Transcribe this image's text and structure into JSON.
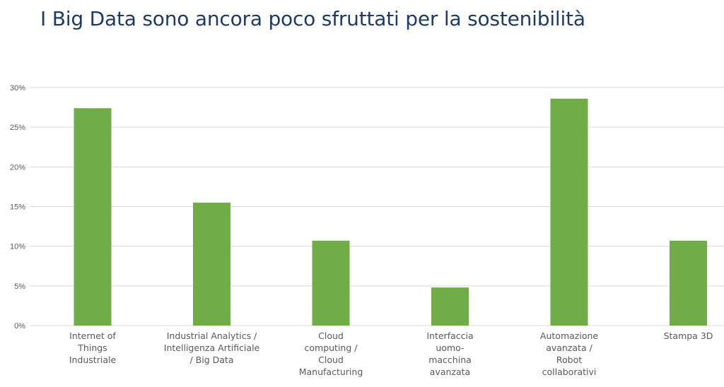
{
  "slide": {
    "title": "I Big Data sono ancora poco sfruttati per la sostenibilità"
  },
  "colors": {
    "bar": "#70ad47",
    "grid": "#d9d9d9",
    "text": "#595959",
    "title": "#1f3a68"
  },
  "chart_data": {
    "type": "bar",
    "title": "",
    "xlabel": "",
    "ylabel": "",
    "ylim": [
      0,
      30
    ],
    "yticks": [
      0,
      5,
      10,
      15,
      20,
      25,
      30
    ],
    "ytick_labels": [
      "0%",
      "5%",
      "10%",
      "15%",
      "20%",
      "25%",
      "30%"
    ],
    "grid": true,
    "categories": [
      "Internet of Things Industriale",
      "Industrial Analytics / Intelligenza Artificiale / Big Data",
      "Cloud computing / Cloud Manufacturing",
      "Interfaccia uomo-macchina avanzata",
      "Automazione avanzata / Robot collaborativi",
      "Stampa 3D"
    ],
    "category_label_lines": [
      [
        "Internet of",
        "Things",
        "Industriale"
      ],
      [
        "Industrial Analytics /",
        "Intelligenza Artificiale",
        "/ Big Data"
      ],
      [
        "Cloud",
        "computing /",
        "Cloud",
        "Manufacturing"
      ],
      [
        "Interfaccia",
        "uomo-",
        "macchina",
        "avanzata"
      ],
      [
        "Automazione",
        "avanzata /",
        "Robot",
        "collaborativi"
      ],
      [
        "Stampa 3D"
      ]
    ],
    "values": [
      27.4,
      15.5,
      10.7,
      4.8,
      28.6,
      10.7
    ]
  }
}
